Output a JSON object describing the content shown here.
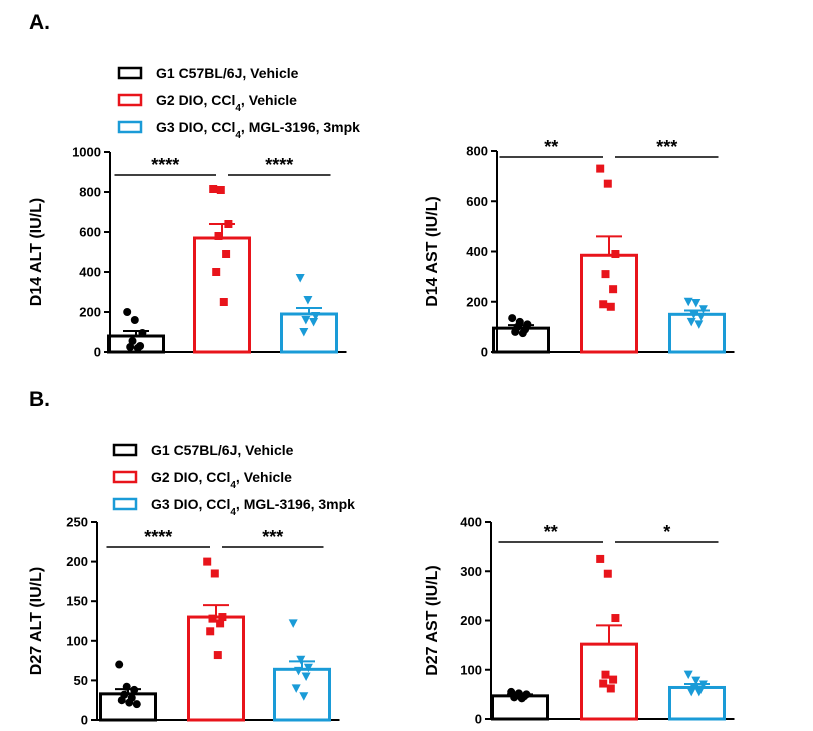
{
  "panels": [
    {
      "id": "A",
      "label": "A."
    },
    {
      "id": "B",
      "label": "B."
    }
  ],
  "legend_groups": [
    {
      "prefix": "G1 C57BL/6J, Vehicle",
      "sub": "",
      "suffix": "",
      "color": "#000000"
    },
    {
      "prefix": "G2 DIO, CCl",
      "sub": "4",
      "suffix": ", Vehicle",
      "color": "#e8141b"
    },
    {
      "prefix": "G3 DIO, CCl",
      "sub": "4",
      "suffix": ", MGL-3196, 3mpk",
      "color": "#1a9bd7"
    }
  ],
  "chart_data": [
    {
      "type": "bar",
      "panel": "A",
      "ylabel": "D14 ALT  (IU/L)",
      "ylim": [
        0,
        1000
      ],
      "yticks": [
        0,
        200,
        400,
        600,
        800,
        1000
      ],
      "groups": [
        "G1",
        "G2",
        "G3"
      ],
      "means": [
        80,
        570,
        190
      ],
      "sem": [
        25,
        70,
        30
      ],
      "points": [
        [
          200,
          160,
          95,
          55,
          30,
          25,
          20
        ],
        [
          815,
          810,
          640,
          580,
          490,
          400,
          250
        ],
        [
          370,
          260,
          180,
          160,
          150,
          100
        ]
      ],
      "significance": [
        {
          "from": 0,
          "to": 1,
          "label": "****"
        },
        {
          "from": 1,
          "to": 2,
          "label": "****"
        }
      ]
    },
    {
      "type": "bar",
      "panel": "A",
      "ylabel": "D14 AST  (IU/L)",
      "ylim": [
        0,
        800
      ],
      "yticks": [
        0,
        200,
        400,
        600,
        800
      ],
      "groups": [
        "G1",
        "G2",
        "G3"
      ],
      "means": [
        95,
        385,
        150
      ],
      "sem": [
        12,
        75,
        15
      ],
      "points": [
        [
          135,
          120,
          110,
          100,
          90,
          80,
          75
        ],
        [
          730,
          670,
          390,
          310,
          250,
          190,
          180
        ],
        [
          200,
          195,
          170,
          150,
          140,
          120,
          110
        ]
      ],
      "significance": [
        {
          "from": 0,
          "to": 1,
          "label": "**"
        },
        {
          "from": 1,
          "to": 2,
          "label": "***"
        }
      ]
    },
    {
      "type": "bar",
      "panel": "B",
      "ylabel": "D27 ALT  (IU/L)",
      "ylim": [
        0,
        250
      ],
      "yticks": [
        0,
        50,
        100,
        150,
        200,
        250
      ],
      "groups": [
        "G1",
        "G2",
        "G3"
      ],
      "means": [
        33,
        130,
        64
      ],
      "sem": [
        6,
        15,
        10
      ],
      "points": [
        [
          70,
          42,
          38,
          32,
          28,
          25,
          22,
          20
        ],
        [
          200,
          185,
          130,
          128,
          122,
          112,
          82
        ],
        [
          122,
          76,
          66,
          62,
          55,
          40,
          30
        ]
      ],
      "significance": [
        {
          "from": 0,
          "to": 1,
          "label": "****"
        },
        {
          "from": 1,
          "to": 2,
          "label": "***"
        }
      ]
    },
    {
      "type": "bar",
      "panel": "B",
      "ylabel": "D27 AST  (IU/L)",
      "ylim": [
        0,
        400
      ],
      "yticks": [
        0,
        100,
        200,
        300,
        400
      ],
      "groups": [
        "G1",
        "G2",
        "G3"
      ],
      "means": [
        47,
        152,
        64
      ],
      "sem": [
        3,
        38,
        7
      ],
      "points": [
        [
          55,
          52,
          50,
          48,
          46,
          44,
          42
        ],
        [
          325,
          295,
          205,
          90,
          80,
          72,
          62
        ],
        [
          90,
          78,
          70,
          65,
          60,
          55,
          55
        ]
      ],
      "significance": [
        {
          "from": 0,
          "to": 1,
          "label": "**"
        },
        {
          "from": 1,
          "to": 2,
          "label": "*"
        }
      ]
    }
  ]
}
